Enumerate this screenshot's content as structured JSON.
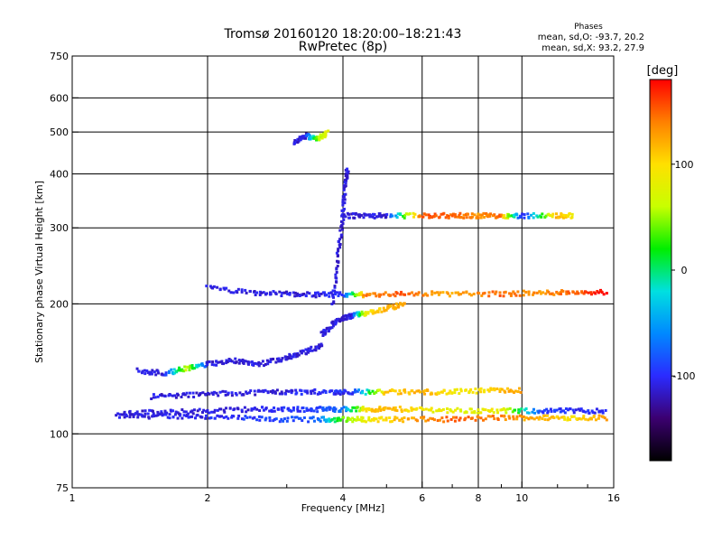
{
  "chart_data": {
    "type": "scatter",
    "title": "Tromsø 20160120 18:20:00–18:21:43",
    "subtitle": "RwPretec (8p)",
    "xlabel": "Frequency [MHz]",
    "ylabel": "Stationary phase Virtual Height [km]",
    "x_scale": "log",
    "y_scale": "log",
    "xlim": [
      1,
      16
    ],
    "ylim": [
      75,
      750
    ],
    "x_ticks": [
      1,
      2,
      4,
      6,
      8,
      10,
      16
    ],
    "x_tick_labels": [
      "1",
      "2",
      "4",
      "6",
      "8",
      "10",
      "16"
    ],
    "y_ticks": [
      75,
      100,
      200,
      300,
      400,
      500,
      600,
      750
    ],
    "y_tick_labels": [
      "75",
      "100",
      "200",
      "300",
      "400",
      "500",
      "600",
      "750"
    ],
    "grid": true,
    "phases_header": "Phases",
    "stats_O": "mean, sd,O: -93.7, 20.2",
    "stats_X": "mean, sd,X:  93.2, 27.9",
    "colorbar": {
      "label": "[deg]",
      "range": [
        -180,
        180
      ],
      "ticks": [
        100,
        0,
        -100
      ],
      "tick_labels": [
        "100",
        "0",
        "-100"
      ],
      "colors": [
        "#000000",
        "#3b0070",
        "#2b2bff",
        "#0088ff",
        "#00e0e0",
        "#00ee00",
        "#c8ff00",
        "#ffe000",
        "#ff8000",
        "#ff0000"
      ]
    },
    "traces": [
      {
        "x": [
          1.25,
          1.5,
          1.8,
          2.2,
          2.8,
          3.5,
          4.0,
          4.6,
          5.5,
          7.0,
          9.0,
          11.0,
          13.0,
          15.5
        ],
        "y": [
          110,
          110,
          110,
          109,
          108,
          108,
          108,
          108,
          108,
          108,
          109,
          109,
          109,
          109
        ],
        "phase": [
          -110,
          -110,
          -105,
          -100,
          -90,
          -80,
          40,
          90,
          120,
          150,
          140,
          120,
          100,
          130
        ]
      },
      {
        "x": [
          1.3,
          1.6,
          2.0,
          2.5,
          3.0,
          3.5,
          4.0,
          4.5,
          5.0,
          6.0,
          7.5,
          9.0,
          11.0,
          13.0,
          15.5
        ],
        "y": [
          112,
          112,
          113,
          114,
          114,
          114,
          114,
          114,
          114,
          114,
          113,
          113,
          113,
          113,
          113
        ],
        "phase": [
          -110,
          -110,
          -110,
          -110,
          -100,
          -90,
          -70,
          100,
          120,
          90,
          80,
          90,
          -90,
          -100,
          -100
        ]
      },
      {
        "x": [
          1.5,
          1.8,
          2.2,
          2.7,
          3.2,
          3.8,
          4.2,
          5.0,
          6.0,
          7.0,
          8.5,
          10.0
        ],
        "y": [
          122,
          123,
          124,
          125,
          125,
          125,
          125,
          125,
          125,
          125,
          126,
          126
        ],
        "phase": [
          -110,
          -110,
          -110,
          -110,
          -105,
          -100,
          -100,
          110,
          120,
          90,
          100,
          130
        ]
      },
      {
        "x": [
          2.0,
          2.5,
          3.0,
          3.5,
          4.0,
          4.5,
          5.5,
          7.0,
          9.0,
          11.0,
          13.0,
          15.5
        ],
        "y": [
          218,
          212,
          211,
          210,
          210,
          210,
          211,
          211,
          211,
          212,
          213,
          213
        ],
        "phase": [
          -110,
          -110,
          -110,
          -110,
          -100,
          140,
          150,
          120,
          150,
          130,
          150,
          180
        ]
      },
      {
        "x": [
          3.6,
          3.8,
          4.0,
          4.2,
          4.5,
          5.0,
          5.5
        ],
        "y": [
          170,
          180,
          185,
          188,
          190,
          195,
          200
        ],
        "phase": [
          -110,
          -110,
          -110,
          -110,
          90,
          120,
          120
        ]
      },
      {
        "x": [
          3.8,
          3.9,
          4.0,
          4.05,
          4.1
        ],
        "y": [
          200,
          260,
          320,
          380,
          410
        ],
        "phase": [
          -110,
          -110,
          -110,
          -110,
          -110
        ]
      },
      {
        "x": [
          4.0,
          4.5,
          5.0,
          6.0,
          7.0,
          8.0,
          9.0,
          10.0,
          12.0,
          13.0
        ],
        "y": [
          320,
          320,
          320,
          320,
          320,
          320,
          320,
          320,
          320,
          320
        ],
        "phase": [
          -110,
          -110,
          -110,
          160,
          150,
          130,
          150,
          -110,
          120,
          90
        ]
      },
      {
        "x": [
          3.1,
          3.3,
          3.5,
          3.7
        ],
        "y": [
          470,
          490,
          480,
          500
        ],
        "phase": [
          -110,
          -110,
          40,
          90
        ]
      },
      {
        "x": [
          1.4,
          1.6,
          1.8,
          2.0,
          2.3,
          2.6,
          3.0,
          3.3,
          3.6
        ],
        "y": [
          140,
          138,
          142,
          145,
          148,
          145,
          150,
          155,
          160
        ],
        "phase": [
          -110,
          -110,
          70,
          -110,
          -110,
          -110,
          -110,
          -110,
          -110
        ]
      }
    ]
  }
}
